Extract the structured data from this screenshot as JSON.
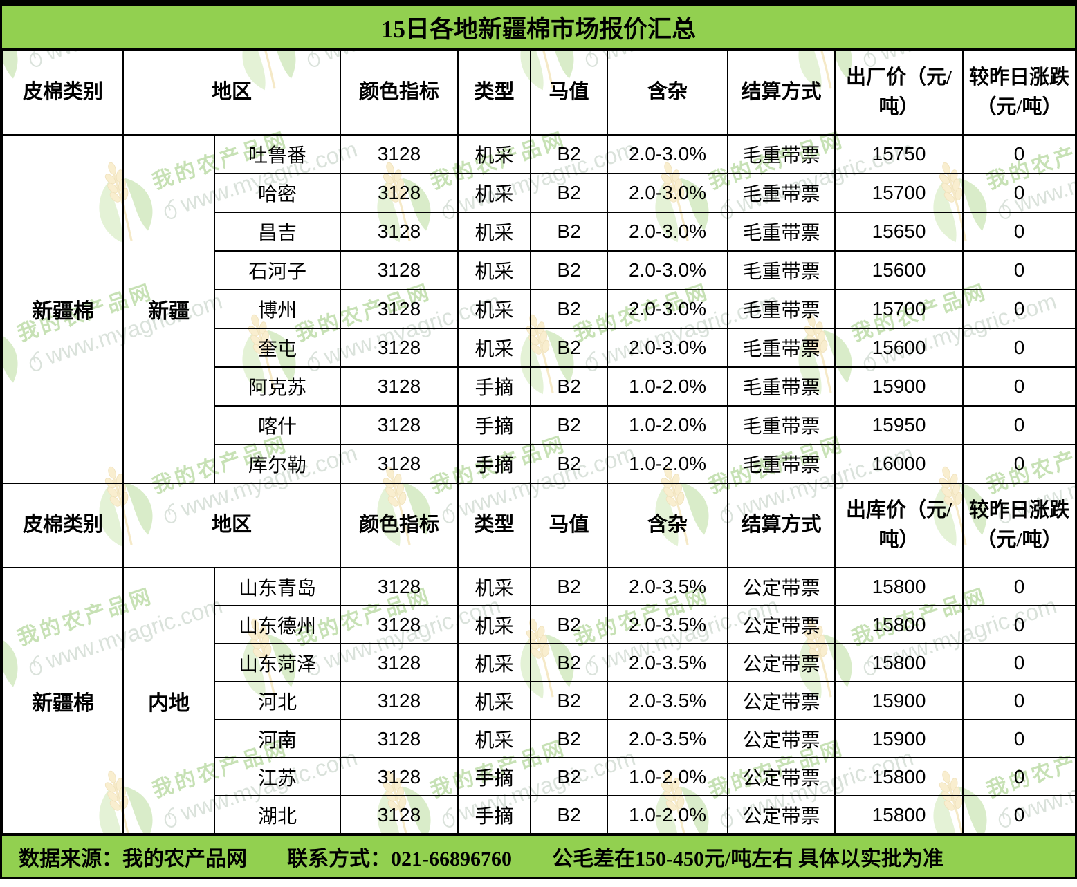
{
  "title": "15日各地新疆棉市场报价汇总",
  "colors": {
    "band_green": "#92d050",
    "border_black": "#000000",
    "watermark_brand_green": "#7cba50",
    "watermark_url_gray": "#a9bcab",
    "watermark_leaf_light": "#bfe2a0",
    "watermark_leaf_dark": "#a6d47f",
    "watermark_wheat_gold": "#f2d78f"
  },
  "watermark": {
    "brand": "我的农产品网",
    "url": "www.myagric.com"
  },
  "sections": [
    {
      "category": "新疆棉",
      "region": "新疆",
      "headers": [
        "皮棉类别",
        "地区",
        "颜色指标",
        "类型",
        "马值",
        "含杂",
        "结算方式",
        "出厂价（元/吨）",
        "较昨日涨跌（元/吨）"
      ],
      "rows": [
        [
          "吐鲁番",
          "3128",
          "机采",
          "B2",
          "2.0-3.0%",
          "毛重带票",
          "15750",
          "0"
        ],
        [
          "哈密",
          "3128",
          "机采",
          "B2",
          "2.0-3.0%",
          "毛重带票",
          "15700",
          "0"
        ],
        [
          "昌吉",
          "3128",
          "机采",
          "B2",
          "2.0-3.0%",
          "毛重带票",
          "15650",
          "0"
        ],
        [
          "石河子",
          "3128",
          "机采",
          "B2",
          "2.0-3.0%",
          "毛重带票",
          "15600",
          "0"
        ],
        [
          "博州",
          "3128",
          "机采",
          "B2",
          "2.0-3.0%",
          "毛重带票",
          "15700",
          "0"
        ],
        [
          "奎屯",
          "3128",
          "机采",
          "B2",
          "2.0-3.0%",
          "毛重带票",
          "15600",
          "0"
        ],
        [
          "阿克苏",
          "3128",
          "手摘",
          "B2",
          "1.0-2.0%",
          "毛重带票",
          "15900",
          "0"
        ],
        [
          "喀什",
          "3128",
          "手摘",
          "B2",
          "1.0-2.0%",
          "毛重带票",
          "15950",
          "0"
        ],
        [
          "库尔勒",
          "3128",
          "手摘",
          "B2",
          "1.0-2.0%",
          "毛重带票",
          "16000",
          "0"
        ]
      ]
    },
    {
      "category": "新疆棉",
      "region": "内地",
      "headers": [
        "皮棉类别",
        "地区",
        "颜色指标",
        "类型",
        "马值",
        "含杂",
        "结算方式",
        "出库价（元/吨）",
        "较昨日涨跌（元/吨）"
      ],
      "rows": [
        [
          "山东青岛",
          "3128",
          "机采",
          "B2",
          "2.0-3.5%",
          "公定带票",
          "15800",
          "0"
        ],
        [
          "山东德州",
          "3128",
          "机采",
          "B2",
          "2.0-3.5%",
          "公定带票",
          "15800",
          "0"
        ],
        [
          "山东菏泽",
          "3128",
          "机采",
          "B2",
          "2.0-3.5%",
          "公定带票",
          "15800",
          "0"
        ],
        [
          "河北",
          "3128",
          "机采",
          "B2",
          "2.0-3.5%",
          "公定带票",
          "15900",
          "0"
        ],
        [
          "河南",
          "3128",
          "机采",
          "B2",
          "2.0-3.5%",
          "公定带票",
          "15900",
          "0"
        ],
        [
          "江苏",
          "3128",
          "手摘",
          "B2",
          "1.0-2.0%",
          "公定带票",
          "15800",
          "0"
        ],
        [
          "湖北",
          "3128",
          "手摘",
          "B2",
          "1.0-2.0%",
          "公定带票",
          "15800",
          "0"
        ]
      ]
    }
  ],
  "footer": {
    "source": "数据来源：我的农产品网",
    "contact": "联系方式：021-66896760",
    "note": "公毛差在150-450元/吨左右  具体以实批为准"
  }
}
